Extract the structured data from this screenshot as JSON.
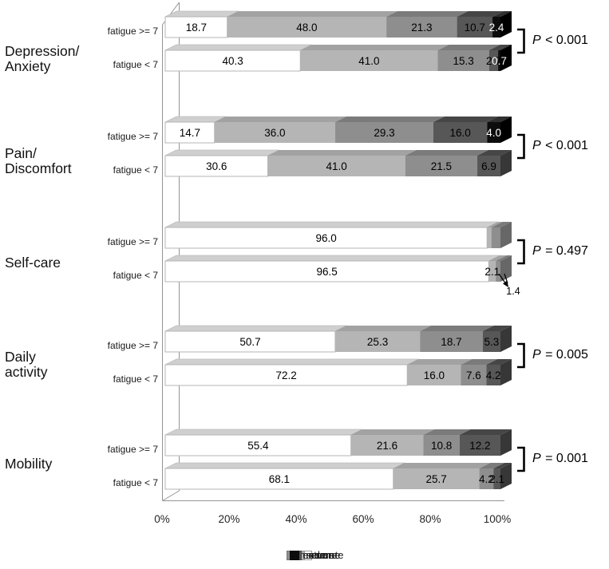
{
  "chart_data": {
    "type": "bar",
    "variant": "3d-horizontal-100pct-stacked",
    "title": "",
    "unit": "%",
    "x_axis": {
      "tick_labels": [
        "0%",
        "20%",
        "40%",
        "60%",
        "80%",
        "100%"
      ],
      "range": [
        0,
        100
      ],
      "gridlines": false
    },
    "legend": {
      "position": "bottom",
      "entries": [
        {
          "label": "no",
          "color": "#ffffff"
        },
        {
          "label": "some",
          "color": "#b5b5b5"
        },
        {
          "label": "moderate",
          "color": "#8e8e8e"
        },
        {
          "label": "severe",
          "color": "#575757"
        },
        {
          "label": "extreme",
          "color": "#0d0d0d"
        }
      ]
    },
    "groups": [
      {
        "label_lines": [
          "Depression/",
          "Anxiety"
        ],
        "p_label": "P < 0.001",
        "rows": [
          {
            "label": "fatigue >= 7",
            "values": [
              18.7,
              48.0,
              21.3,
              10.7,
              2.4
            ],
            "value_labels": [
              "18.7",
              "48.0",
              "21.3",
              "10.7",
              "2.4"
            ]
          },
          {
            "label": "fatigue < 7",
            "values": [
              40.3,
              41.0,
              15.3,
              2.7,
              0.7
            ],
            "value_labels": [
              "40.3",
              "41.0",
              "15.3",
              "2.7",
              "0.7"
            ]
          }
        ]
      },
      {
        "label_lines": [
          "Pain/",
          "Discomfort"
        ],
        "p_label": "P < 0.001",
        "rows": [
          {
            "label": "fatigue >= 7",
            "values": [
              14.7,
              36.0,
              29.3,
              16.0,
              4.0
            ],
            "value_labels": [
              "14.7",
              "36.0",
              "29.3",
              "16.0",
              "4.0"
            ]
          },
          {
            "label": "fatigue < 7",
            "values": [
              30.6,
              41.0,
              21.5,
              6.9,
              0
            ],
            "value_labels": [
              "30.6",
              "41.0",
              "21.5",
              "6.9",
              ""
            ]
          }
        ]
      },
      {
        "label_lines": [
          "Self-care"
        ],
        "p_label": "P = 0.497",
        "rows": [
          {
            "label": "fatigue >= 7",
            "values": [
              96.0,
              1.3,
              2.7,
              0,
              0
            ],
            "value_labels": [
              "96.0",
              "",
              "",
              "",
              ""
            ]
          },
          {
            "label": "fatigue < 7",
            "values": [
              96.5,
              2.1,
              1.4,
              0,
              0
            ],
            "value_labels": [
              "96.5",
              "2.1",
              "",
              "",
              ""
            ],
            "annotation": {
              "text": "1.4"
            }
          }
        ]
      },
      {
        "label_lines": [
          "Daily",
          "activity"
        ],
        "p_label": "P = 0.005",
        "rows": [
          {
            "label": "fatigue >= 7",
            "values": [
              50.7,
              25.3,
              18.7,
              5.3,
              0
            ],
            "value_labels": [
              "50.7",
              "25.3",
              "18.7",
              "5.3",
              ""
            ]
          },
          {
            "label": "fatigue < 7",
            "values": [
              72.2,
              16.0,
              7.6,
              4.2,
              0
            ],
            "value_labels": [
              "72.2",
              "16.0",
              "7.6",
              "4.2",
              ""
            ]
          }
        ]
      },
      {
        "label_lines": [
          "Mobility"
        ],
        "p_label": "P = 0.001",
        "rows": [
          {
            "label": "fatigue >= 7",
            "values": [
              55.4,
              21.6,
              10.8,
              12.2,
              0
            ],
            "value_labels": [
              "55.4",
              "21.6",
              "10.8",
              "12.2",
              ""
            ]
          },
          {
            "label": "fatigue < 7",
            "values": [
              68.1,
              25.7,
              4.2,
              2.1,
              0
            ],
            "value_labels": [
              "68.1",
              "25.7",
              "4.2",
              "2.1",
              ""
            ]
          }
        ]
      }
    ]
  }
}
